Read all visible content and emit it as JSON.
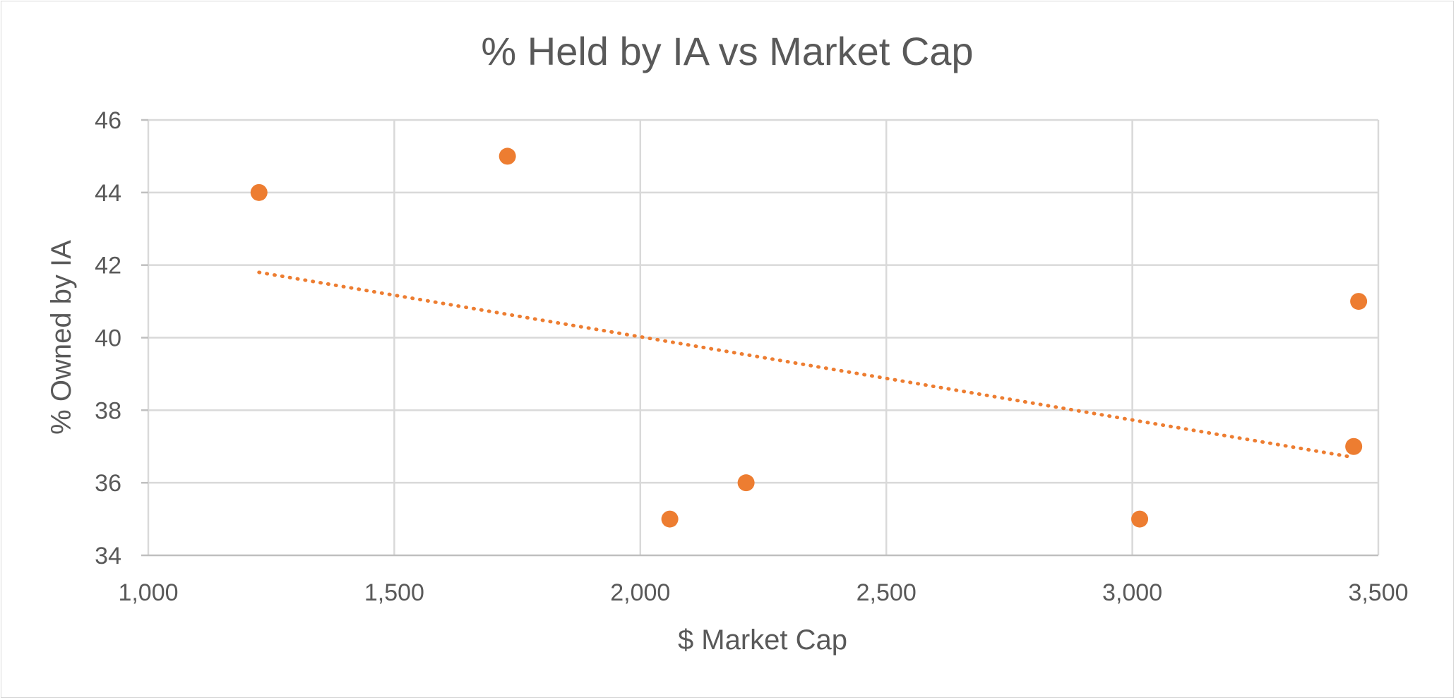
{
  "chart_data": {
    "type": "scatter",
    "title": "% Held by IA vs Market Cap",
    "xlabel": "$ Market Cap",
    "ylabel": "% Owned by IA",
    "xlim": [
      1000,
      3500
    ],
    "ylim": [
      34,
      46
    ],
    "x_ticks": [
      1000,
      1500,
      2000,
      2500,
      3000,
      3500
    ],
    "x_tick_labels": [
      "1,000",
      "1,500",
      "2,000",
      "2,500",
      "3,000",
      "3,500"
    ],
    "y_ticks": [
      34,
      36,
      38,
      40,
      42,
      44,
      46
    ],
    "y_tick_labels": [
      "34",
      "36",
      "38",
      "40",
      "42",
      "44",
      "46"
    ],
    "grid": true,
    "legend": "none",
    "series": [
      {
        "color": "#ED7D31",
        "points": [
          {
            "x": 1225,
            "y": 44
          },
          {
            "x": 1730,
            "y": 45
          },
          {
            "x": 2060,
            "y": 35
          },
          {
            "x": 2215,
            "y": 36
          },
          {
            "x": 3015,
            "y": 35
          },
          {
            "x": 3450,
            "y": 37
          },
          {
            "x": 3460,
            "y": 41
          }
        ],
        "trendline": {
          "type": "linear",
          "style": "dotted",
          "x_start": 1225,
          "y_start": 41.8,
          "x_end": 3450,
          "y_end": 36.7
        }
      }
    ]
  }
}
